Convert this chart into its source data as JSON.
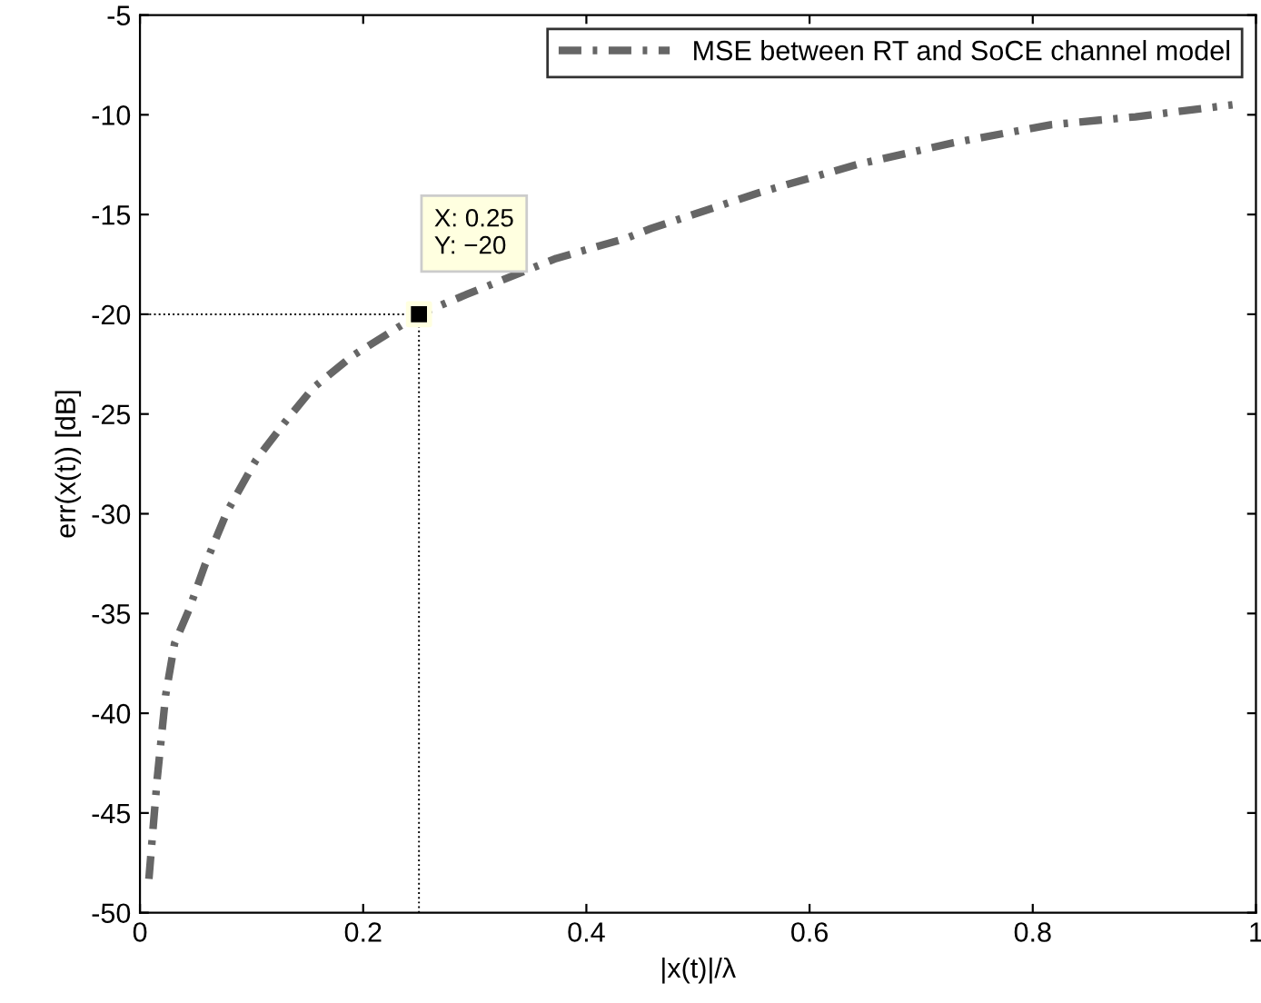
{
  "chart_data": {
    "type": "line",
    "xlabel": "|x(t)|/λ",
    "ylabel": "err(x(t)) [dB]",
    "xlim": [
      0,
      1
    ],
    "ylim": [
      -50,
      -5
    ],
    "xticks": [
      0,
      0.2,
      0.4,
      0.6,
      0.8,
      1
    ],
    "yticks": [
      -50,
      -45,
      -40,
      -35,
      -30,
      -25,
      -20,
      -15,
      -10,
      -5
    ],
    "grid": false,
    "legend": "top right",
    "series": [
      {
        "name": "MSE between RT and SoCE channel model",
        "color": "#666666",
        "line_style": "dashdot",
        "marker": "none",
        "x": [
          0.008,
          0.0154,
          0.023,
          0.031,
          0.044,
          0.058,
          0.078,
          0.104,
          0.13,
          0.155,
          0.19,
          0.25,
          0.293,
          0.373,
          0.435,
          0.458,
          0.555,
          0.642,
          0.729,
          0.816,
          0.892,
          0.979
        ],
        "values": [
          -48.3,
          -43.3,
          -39.1,
          -36.5,
          -34.8,
          -32.6,
          -29.9,
          -27.3,
          -25.4,
          -23.7,
          -22.1,
          -20,
          -19.0,
          -17.2,
          -16.2,
          -15.7,
          -13.9,
          -12.5,
          -11.4,
          -10.5,
          -10.1,
          -9.5
        ]
      },
      {
        "type": "scatter",
        "color": "#000000",
        "marker": "square",
        "x": [
          0.25
        ],
        "values": [
          -20
        ]
      }
    ],
    "ref_lines": [
      {
        "axis": "y",
        "value": -20,
        "color": "#000000",
        "line_style": "dotted"
      },
      {
        "axis": "x",
        "value": 0.25,
        "color": "#000000",
        "line_style": "dotted"
      }
    ],
    "annotations": [
      {
        "text": "X: 0.25\nY: −20",
        "x": 0.25,
        "y": -20
      }
    ]
  }
}
